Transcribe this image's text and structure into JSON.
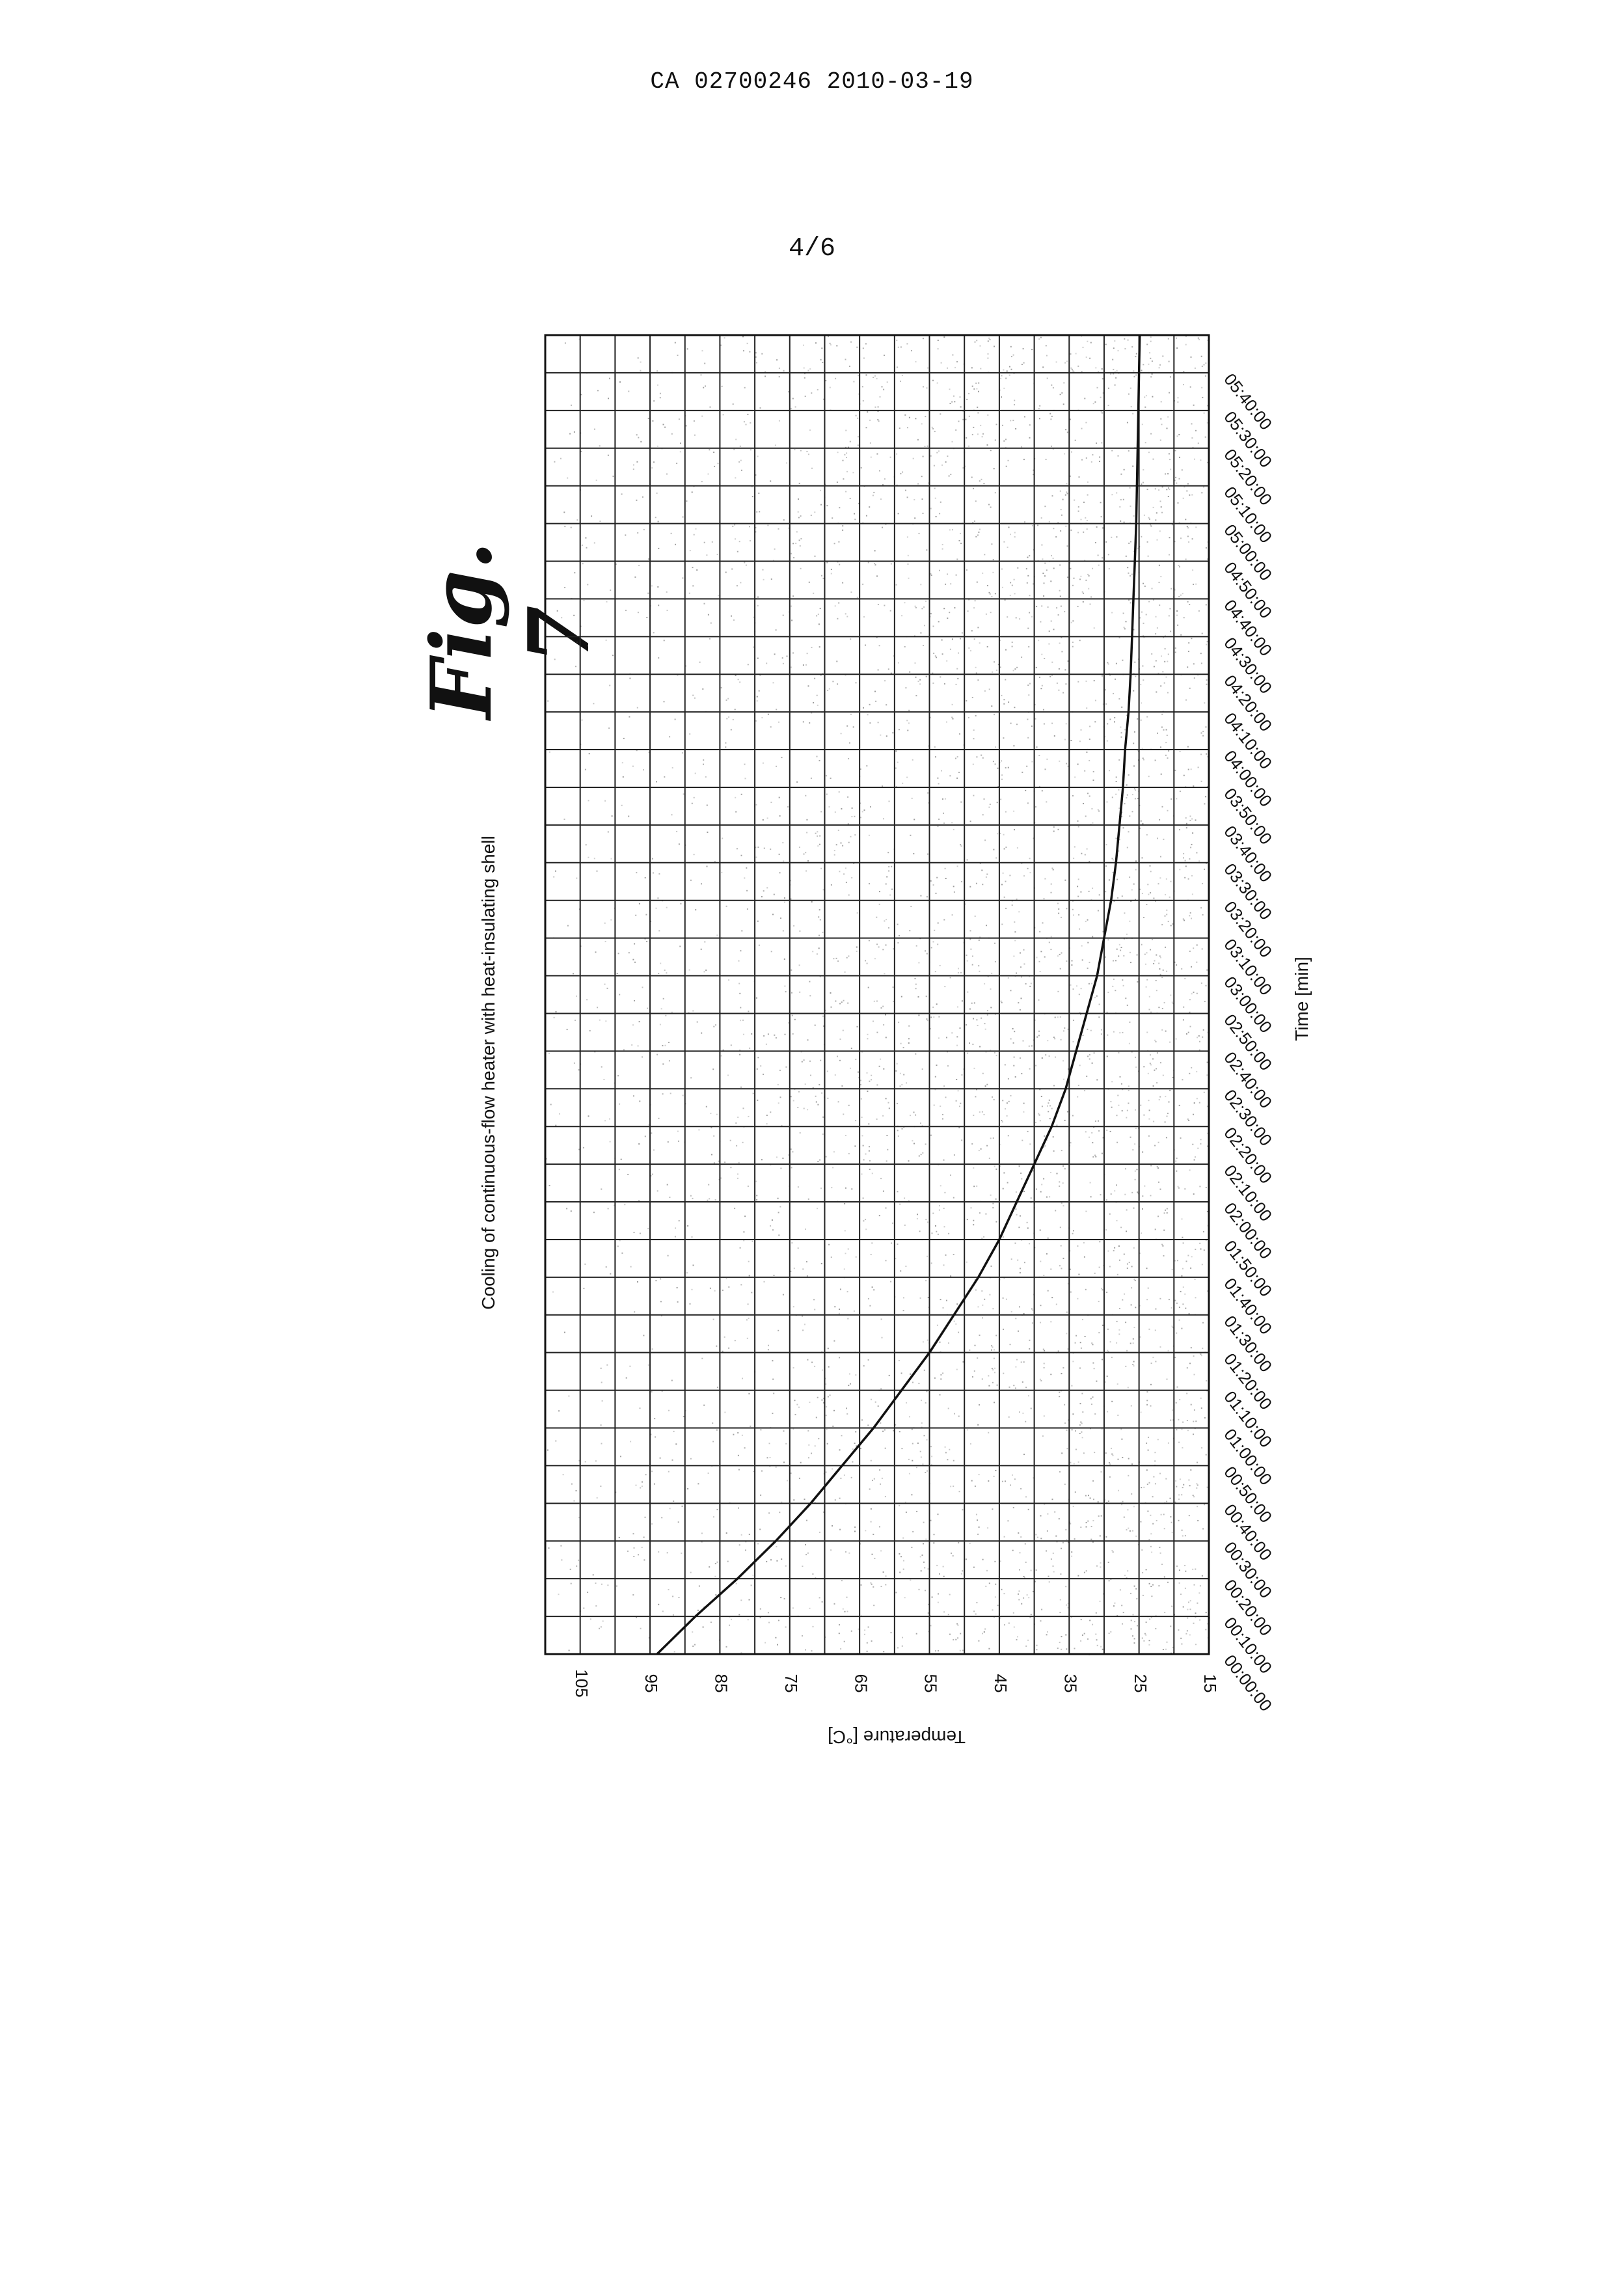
{
  "document": {
    "header": "CA 02700246 2010-03-19",
    "page_number": "4/6",
    "figure_label": "Fig. 7"
  },
  "chart_data": {
    "type": "line",
    "title": "Cooling of continuous-flow heater with heat-insulating shell",
    "xlabel": "Time [min]",
    "ylabel": "Temperature [°C]",
    "x_tick_labels": [
      "00:00:00",
      "00:10:00",
      "00:20:00",
      "00:30:00",
      "00:40:00",
      "00:50:00",
      "01:00:00",
      "01:10:00",
      "01:20:00",
      "01:30:00",
      "01:40:00",
      "01:50:00",
      "02:00:00",
      "02:10:00",
      "02:20:00",
      "02:30:00",
      "02:40:00",
      "02:50:00",
      "03:00:00",
      "03:10:00",
      "03:20:00",
      "03:30:00",
      "03:40:00",
      "03:50:00",
      "04:00:00",
      "04:10:00",
      "04:20:00",
      "04:30:00",
      "04:40:00",
      "04:50:00",
      "05:00:00",
      "05:10:00",
      "05:20:00",
      "05:30:00",
      "05:40:00"
    ],
    "y_tick_labels": [
      "15",
      "25",
      "35",
      "45",
      "55",
      "65",
      "75",
      "85",
      "95",
      "105"
    ],
    "xlim": [
      "00:00:00",
      "05:50:00"
    ],
    "ylim": [
      15,
      110
    ],
    "grid": true,
    "series": [
      {
        "color": "#111111",
        "x": [
          "00:00:00",
          "00:10:00",
          "00:20:00",
          "00:30:00",
          "00:40:00",
          "00:50:00",
          "01:00:00",
          "01:10:00",
          "01:20:00",
          "01:30:00",
          "01:40:00",
          "01:50:00",
          "02:00:00",
          "02:10:00",
          "02:20:00",
          "02:30:00",
          "02:40:00",
          "02:50:00",
          "03:00:00",
          "03:10:00",
          "03:20:00",
          "03:30:00",
          "03:40:00",
          "03:50:00",
          "04:00:00",
          "04:10:00",
          "04:20:00",
          "04:30:00",
          "04:40:00",
          "04:50:00",
          "05:00:00",
          "05:10:00",
          "05:20:00",
          "05:30:00",
          "05:40:00",
          "05:50:00"
        ],
        "y": [
          94,
          88.5,
          82.5,
          77,
          72,
          67.5,
          63,
          59,
          55,
          51.5,
          48,
          45,
          42.5,
          40,
          37.5,
          35.5,
          34,
          32.5,
          31,
          30,
          29,
          28.3,
          27.8,
          27.3,
          27,
          26.5,
          26.2,
          26,
          25.8,
          25.6,
          25.4,
          25.3,
          25.2,
          25.1,
          25,
          24.9
        ]
      }
    ]
  }
}
